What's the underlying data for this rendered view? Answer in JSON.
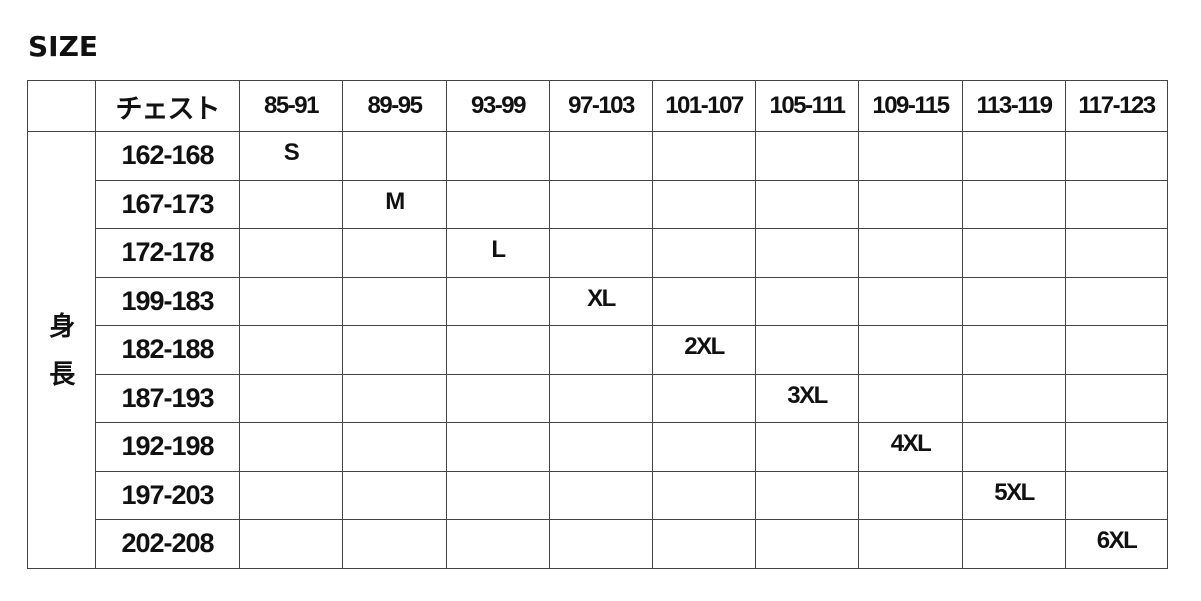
{
  "title": "SIZE",
  "table": {
    "corner": "",
    "chest_label": "チェスト",
    "height_label": [
      "身",
      "長"
    ],
    "chest_ranges": [
      "85-91",
      "89-95",
      "93-99",
      "97-103",
      "101-107",
      "105-111",
      "109-115",
      "113-119",
      "117-123"
    ],
    "rows": [
      {
        "height": "162-168",
        "size": "S"
      },
      {
        "height": "167-173",
        "size": "M"
      },
      {
        "height": "172-178",
        "size": "L"
      },
      {
        "height": "199-183",
        "size": "XL"
      },
      {
        "height": "182-188",
        "size": "2XL"
      },
      {
        "height": "187-193",
        "size": "3XL"
      },
      {
        "height": "192-198",
        "size": "4XL"
      },
      {
        "height": "197-203",
        "size": "5XL"
      },
      {
        "height": "202-208",
        "size": "6XL"
      }
    ]
  }
}
